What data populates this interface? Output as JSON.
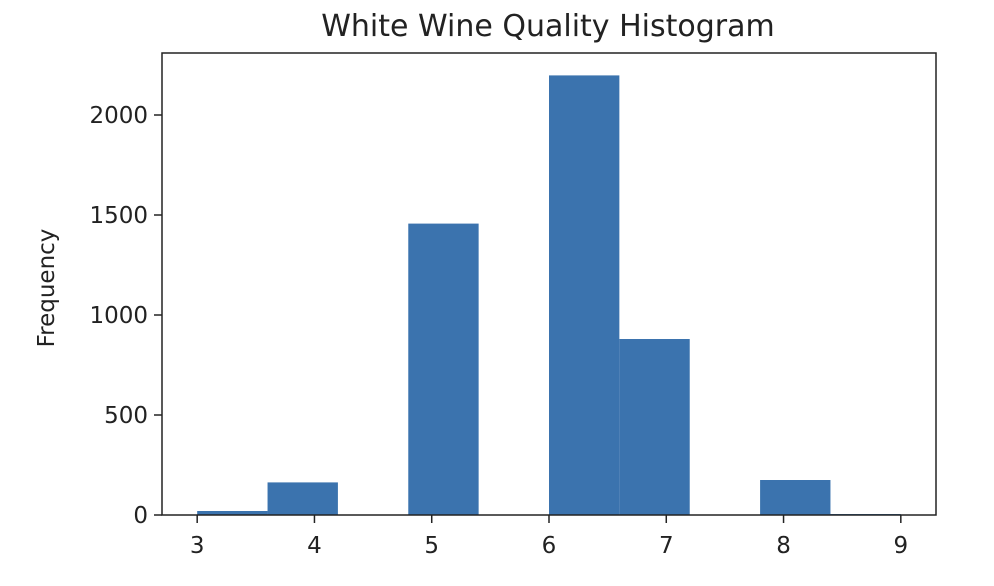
{
  "chart_data": {
    "type": "bar",
    "title": "White Wine Quality Histogram",
    "xlabel": "",
    "ylabel": "Frequency",
    "xlim": [
      2.7,
      9.3
    ],
    "ylim": [
      0,
      2310
    ],
    "xticks": [
      "3",
      "4",
      "5",
      "6",
      "7",
      "8",
      "9"
    ],
    "yticks": [
      "0",
      "500",
      "1000",
      "1500",
      "2000"
    ],
    "bins": [
      {
        "from": 3.0,
        "to": 3.6,
        "value": 20
      },
      {
        "from": 3.6,
        "to": 4.2,
        "value": 163
      },
      {
        "from": 4.2,
        "to": 4.8,
        "value": 0
      },
      {
        "from": 4.8,
        "to": 5.4,
        "value": 1457
      },
      {
        "from": 5.4,
        "to": 6.0,
        "value": 0
      },
      {
        "from": 6.0,
        "to": 6.6,
        "value": 2198
      },
      {
        "from": 6.6,
        "to": 7.2,
        "value": 880
      },
      {
        "from": 7.2,
        "to": 7.8,
        "value": 0
      },
      {
        "from": 7.8,
        "to": 8.4,
        "value": 175
      },
      {
        "from": 8.4,
        "to": 9.0,
        "value": 5
      }
    ],
    "bar_color": "#3b73ae",
    "grid": false,
    "legend": "none"
  }
}
